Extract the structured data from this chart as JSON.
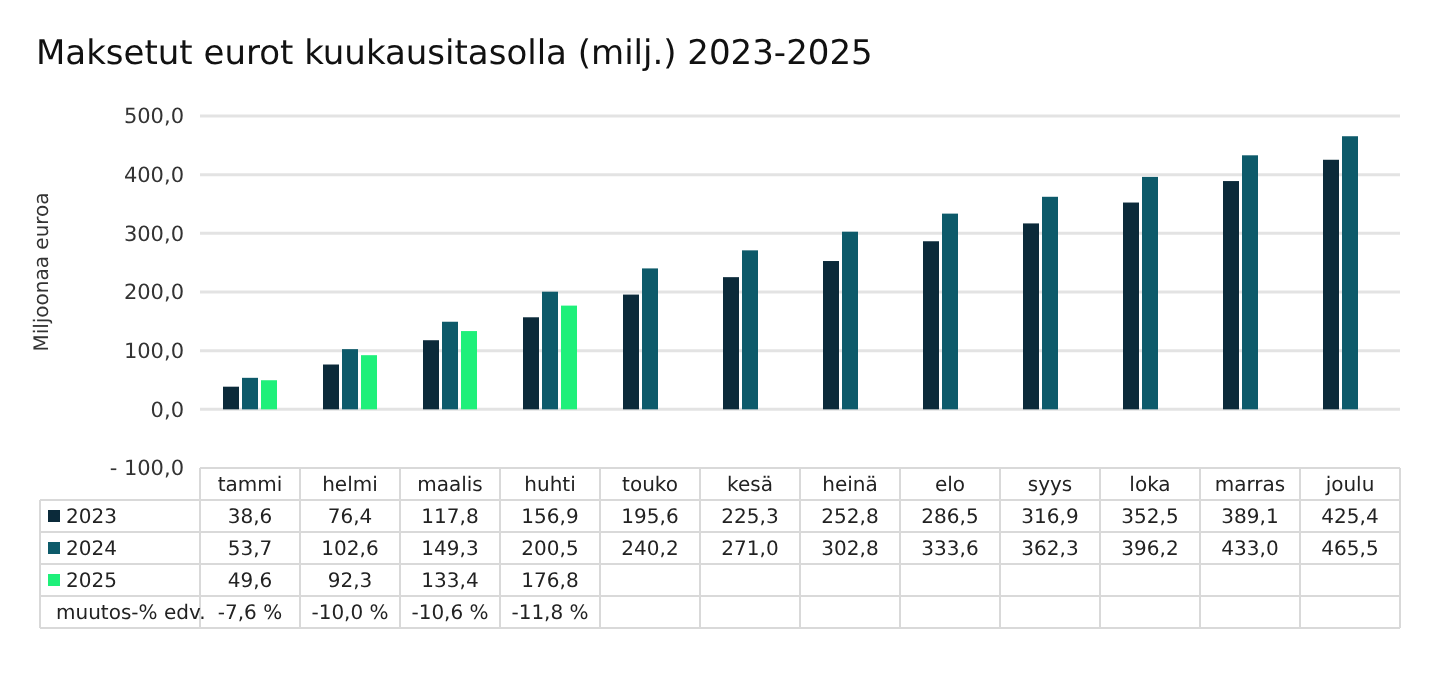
{
  "chart_data": {
    "type": "bar",
    "title": "Maksetut eurot kuukausitasolla (milj.) 2023-2025",
    "ylabel": "Miljoonaa euroa",
    "categories": [
      "tammi",
      "helmi",
      "maalis",
      "huhti",
      "touko",
      "kesä",
      "heinä",
      "elo",
      "syys",
      "loka",
      "marras",
      "joulu"
    ],
    "series": [
      {
        "name": "2023",
        "color": "#0b2a3a",
        "values": [
          38.6,
          76.4,
          117.8,
          156.9,
          195.6,
          225.3,
          252.8,
          286.5,
          316.9,
          352.5,
          389.1,
          425.4
        ],
        "value_labels": [
          "38,6",
          "76,4",
          "117,8",
          "156,9",
          "195,6",
          "225,3",
          "252,8",
          "286,5",
          "316,9",
          "352,5",
          "389,1",
          "425,4"
        ]
      },
      {
        "name": "2024",
        "color": "#0d5a6a",
        "values": [
          53.7,
          102.6,
          149.3,
          200.5,
          240.2,
          271.0,
          302.8,
          333.6,
          362.3,
          396.2,
          433.0,
          465.5
        ],
        "value_labels": [
          "53,7",
          "102,6",
          "149,3",
          "200,5",
          "240,2",
          "271,0",
          "302,8",
          "333,6",
          "362,3",
          "396,2",
          "433,0",
          "465,5"
        ]
      },
      {
        "name": "2025",
        "color": "#1ef07a",
        "values": [
          49.6,
          92.3,
          133.4,
          176.8,
          null,
          null,
          null,
          null,
          null,
          null,
          null,
          null
        ],
        "value_labels": [
          "49,6",
          "92,3",
          "133,4",
          "176,8",
          null,
          null,
          null,
          null,
          null,
          null,
          null,
          null
        ]
      }
    ],
    "ylim": [
      -100,
      500
    ],
    "yticks": [
      {
        "value": -100,
        "label": "- 100,0"
      },
      {
        "value": 0,
        "label": "0,0"
      },
      {
        "value": 100,
        "label": "100,0"
      },
      {
        "value": 200,
        "label": "200,0"
      },
      {
        "value": 300,
        "label": "300,0"
      },
      {
        "value": 400,
        "label": "400,0"
      },
      {
        "value": 500,
        "label": "500,0"
      }
    ],
    "grid": "y",
    "legend": "bottom",
    "annotations": [
      "muutos-% edv.",
      "-7,6 %",
      "-10,0 %",
      "-10,6 %",
      "-11,8 %"
    ]
  }
}
